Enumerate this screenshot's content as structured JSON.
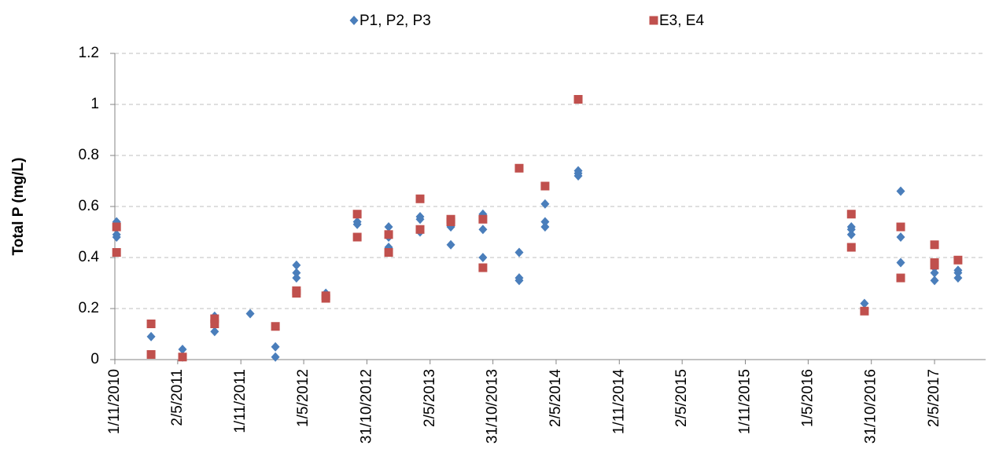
{
  "chart_data": {
    "type": "scatter",
    "y_label": "Total P (mg/L)",
    "xlim": [
      "2010-11-01",
      "2017-09-27"
    ],
    "ylim": [
      0,
      1.2
    ],
    "yticks": [
      0,
      0.2,
      0.4,
      0.6,
      0.8,
      1,
      1.2
    ],
    "xticks": [
      {
        "value": "2010-11-01",
        "label": "1/11/2010"
      },
      {
        "value": "2011-05-02",
        "label": "2/5/2011"
      },
      {
        "value": "2011-11-01",
        "label": "1/11/2011"
      },
      {
        "value": "2012-05-01",
        "label": "1/5/2012"
      },
      {
        "value": "2012-10-31",
        "label": "31/10/2012"
      },
      {
        "value": "2013-05-02",
        "label": "2/5/2013"
      },
      {
        "value": "2013-10-31",
        "label": "31/10/2013"
      },
      {
        "value": "2014-05-02",
        "label": "2/5/2014"
      },
      {
        "value": "2014-11-01",
        "label": "1/11/2014"
      },
      {
        "value": "2015-05-02",
        "label": "2/5/2015"
      },
      {
        "value": "2015-11-01",
        "label": "1/11/2015"
      },
      {
        "value": "2016-05-01",
        "label": "1/5/2016"
      },
      {
        "value": "2016-10-31",
        "label": "31/10/2016"
      },
      {
        "value": "2017-05-02",
        "label": "2/5/2017"
      }
    ],
    "grid": true,
    "legend": "top",
    "series": [
      {
        "name": "P1, P2, P3",
        "color": "#4a7ebb",
        "marker": "diamond",
        "x": [
          "2010-11-06",
          "2010-11-06",
          "2010-11-06",
          "2011-02-14",
          "2011-05-16",
          "2011-05-16",
          "2011-08-17",
          "2011-08-17",
          "2011-08-17",
          "2011-11-28",
          "2012-02-09",
          "2012-02-09",
          "2012-04-10",
          "2012-04-10",
          "2012-04-10",
          "2012-07-04",
          "2012-07-04",
          "2012-10-03",
          "2012-10-03",
          "2013-01-02",
          "2013-01-02",
          "2013-01-02",
          "2013-04-03",
          "2013-04-03",
          "2013-04-03",
          "2013-07-01",
          "2013-07-01",
          "2013-10-02",
          "2013-10-02",
          "2013-10-02",
          "2014-01-15",
          "2014-01-15",
          "2014-01-15",
          "2014-03-31",
          "2014-03-31",
          "2014-03-31",
          "2014-07-05",
          "2014-07-05",
          "2014-07-05",
          "2016-09-03",
          "2016-09-03",
          "2016-09-03",
          "2016-10-11",
          "2017-01-24",
          "2017-01-24",
          "2017-01-24",
          "2017-05-02",
          "2017-05-02",
          "2017-05-02",
          "2017-07-09",
          "2017-07-09",
          "2017-07-09"
        ],
        "values": [
          0.54,
          0.49,
          0.48,
          0.09,
          0.04,
          0.01,
          0.17,
          0.16,
          0.11,
          0.18,
          0.05,
          0.01,
          0.37,
          0.34,
          0.32,
          0.26,
          0.25,
          0.54,
          0.53,
          0.52,
          0.48,
          0.44,
          0.56,
          0.55,
          0.5,
          0.52,
          0.45,
          0.57,
          0.51,
          0.4,
          0.42,
          0.32,
          0.31,
          0.61,
          0.54,
          0.52,
          0.74,
          0.73,
          0.72,
          0.52,
          0.51,
          0.49,
          0.22,
          0.66,
          0.48,
          0.38,
          0.36,
          0.34,
          0.31,
          0.35,
          0.34,
          0.32
        ]
      },
      {
        "name": "E3, E4",
        "color": "#c0504d",
        "marker": "square",
        "x": [
          "2010-11-06",
          "2010-11-06",
          "2011-02-14",
          "2011-02-14",
          "2011-05-16",
          "2011-08-17",
          "2011-08-17",
          "2012-02-09",
          "2012-04-10",
          "2012-04-10",
          "2012-07-04",
          "2012-07-04",
          "2012-10-03",
          "2012-10-03",
          "2013-01-02",
          "2013-01-02",
          "2013-04-03",
          "2013-04-03",
          "2013-07-01",
          "2013-07-01",
          "2013-10-02",
          "2013-10-02",
          "2014-01-15",
          "2014-03-31",
          "2014-07-05",
          "2016-09-03",
          "2016-09-03",
          "2016-10-11",
          "2017-01-24",
          "2017-01-24",
          "2017-05-02",
          "2017-05-02",
          "2017-05-02",
          "2017-07-09"
        ],
        "values": [
          0.52,
          0.42,
          0.14,
          0.02,
          0.01,
          0.16,
          0.14,
          0.13,
          0.27,
          0.26,
          0.25,
          0.24,
          0.57,
          0.48,
          0.49,
          0.42,
          0.63,
          0.51,
          0.55,
          0.54,
          0.55,
          0.36,
          0.75,
          0.68,
          1.02,
          0.57,
          0.44,
          0.19,
          0.52,
          0.32,
          0.45,
          0.38,
          0.37,
          0.39
        ]
      }
    ]
  }
}
